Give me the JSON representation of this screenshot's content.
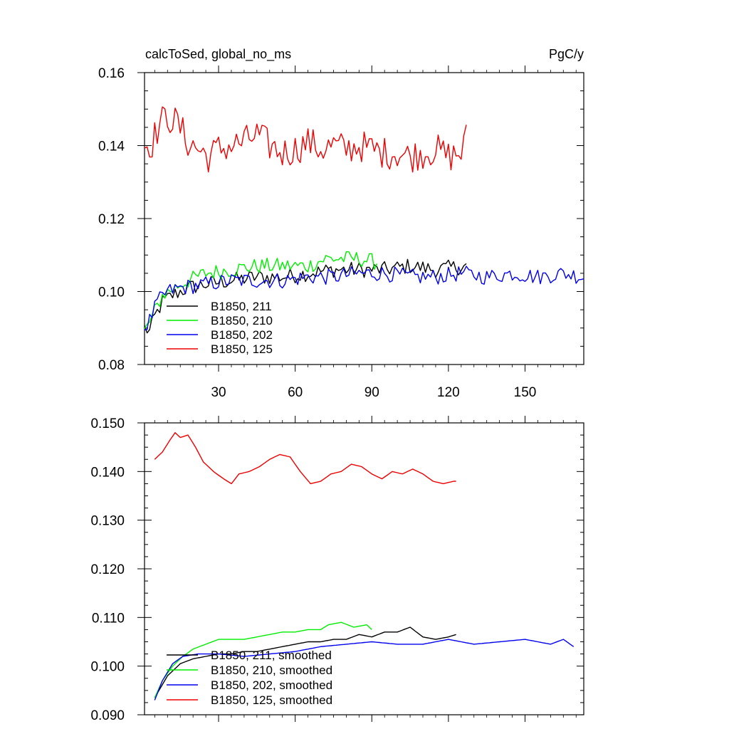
{
  "colors": {
    "run_211": "#000000",
    "run_210": "#00ee00",
    "run_202": "#0000ee",
    "run_125": "#ee0000"
  },
  "chart_data": [
    {
      "type": "line",
      "title": "calcToSed, global_no_ms",
      "units": "PgC/y",
      "xlabel": "",
      "ylabel": "",
      "xlim": [
        1,
        173
      ],
      "ylim": [
        0.08,
        0.16
      ],
      "xticks": [
        30,
        60,
        90,
        120,
        150
      ],
      "xtick_labels": [
        "30",
        "60",
        "90",
        "120",
        "150"
      ],
      "yticks": [
        0.08,
        0.1,
        0.12,
        0.14,
        0.16
      ],
      "ytick_labels": [
        "0.08",
        "0.10",
        "0.12",
        "0.14",
        "0.16"
      ],
      "legend_position": "bottom-left",
      "series": [
        {
          "name": "B1850, 211",
          "color_key": "run_211",
          "x_start": 1,
          "x_end": 127,
          "noisy": true,
          "anchors": [
            [
              1,
              0.09
            ],
            [
              3,
              0.089
            ],
            [
              5,
              0.093
            ],
            [
              8,
              0.097
            ],
            [
              12,
              0.099
            ],
            [
              18,
              0.101
            ],
            [
              25,
              0.102
            ],
            [
              35,
              0.103
            ],
            [
              45,
              0.104
            ],
            [
              55,
              0.104
            ],
            [
              65,
              0.105
            ],
            [
              75,
              0.106
            ],
            [
              85,
              0.106
            ],
            [
              95,
              0.106
            ],
            [
              105,
              0.107
            ],
            [
              115,
              0.106
            ],
            [
              127,
              0.107
            ]
          ]
        },
        {
          "name": "B1850, 210",
          "color_key": "run_210",
          "x_start": 1,
          "x_end": 92,
          "noisy": true,
          "anchors": [
            [
              1,
              0.089
            ],
            [
              4,
              0.093
            ],
            [
              8,
              0.099
            ],
            [
              15,
              0.102
            ],
            [
              25,
              0.105
            ],
            [
              35,
              0.106
            ],
            [
              45,
              0.107
            ],
            [
              55,
              0.107
            ],
            [
              65,
              0.107
            ],
            [
              72,
              0.109
            ],
            [
              78,
              0.109
            ],
            [
              85,
              0.109
            ],
            [
              92,
              0.108
            ]
          ]
        },
        {
          "name": "B1850, 202",
          "color_key": "run_202",
          "x_start": 1,
          "x_end": 173,
          "noisy": true,
          "anchors": [
            [
              1,
              0.09
            ],
            [
              3,
              0.092
            ],
            [
              6,
              0.097
            ],
            [
              10,
              0.1
            ],
            [
              15,
              0.101
            ],
            [
              25,
              0.102
            ],
            [
              35,
              0.103
            ],
            [
              45,
              0.103
            ],
            [
              55,
              0.103
            ],
            [
              65,
              0.104
            ],
            [
              75,
              0.104
            ],
            [
              85,
              0.105
            ],
            [
              95,
              0.105
            ],
            [
              105,
              0.104
            ],
            [
              115,
              0.104
            ],
            [
              125,
              0.105
            ],
            [
              135,
              0.104
            ],
            [
              145,
              0.105
            ],
            [
              155,
              0.104
            ],
            [
              165,
              0.105
            ],
            [
              173,
              0.104
            ]
          ]
        },
        {
          "name": "B1850, 125",
          "color_key": "run_125",
          "x_start": 1,
          "x_end": 127,
          "noisy": true,
          "anchors": [
            [
              1,
              0.14
            ],
            [
              4,
              0.141
            ],
            [
              7,
              0.146
            ],
            [
              10,
              0.148
            ],
            [
              14,
              0.146
            ],
            [
              18,
              0.141
            ],
            [
              22,
              0.139
            ],
            [
              26,
              0.137
            ],
            [
              30,
              0.139
            ],
            [
              35,
              0.14
            ],
            [
              40,
              0.141
            ],
            [
              45,
              0.143
            ],
            [
              50,
              0.14
            ],
            [
              55,
              0.138
            ],
            [
              60,
              0.139
            ],
            [
              65,
              0.141
            ],
            [
              70,
              0.139
            ],
            [
              75,
              0.14
            ],
            [
              80,
              0.139
            ],
            [
              85,
              0.14
            ],
            [
              90,
              0.139
            ],
            [
              95,
              0.138
            ],
            [
              100,
              0.138
            ],
            [
              105,
              0.137
            ],
            [
              110,
              0.138
            ],
            [
              115,
              0.139
            ],
            [
              120,
              0.137
            ],
            [
              125,
              0.138
            ],
            [
              127,
              0.142
            ]
          ]
        }
      ]
    },
    {
      "type": "line",
      "title": "",
      "units": "",
      "xlabel": "",
      "ylabel": "",
      "xlim": [
        1,
        173
      ],
      "ylim": [
        0.09,
        0.15
      ],
      "xticks": [
        30,
        60,
        90,
        120,
        150
      ],
      "xtick_labels": [],
      "yticks": [
        0.09,
        0.1,
        0.11,
        0.12,
        0.13,
        0.14,
        0.15
      ],
      "ytick_labels": [
        "0.090",
        "0.100",
        "0.110",
        "0.120",
        "0.130",
        "0.140",
        "0.150"
      ],
      "legend_position": "bottom-left",
      "series": [
        {
          "name": "B1850, 211, smoothed",
          "color_key": "run_211",
          "x_start": 5,
          "x_end": 123,
          "noisy": false,
          "anchors": [
            [
              5,
              0.0935
            ],
            [
              10,
              0.098
            ],
            [
              15,
              0.1005
            ],
            [
              20,
              0.1015
            ],
            [
              25,
              0.102
            ],
            [
              30,
              0.1025
            ],
            [
              35,
              0.1025
            ],
            [
              40,
              0.103
            ],
            [
              45,
              0.103
            ],
            [
              50,
              0.1035
            ],
            [
              55,
              0.104
            ],
            [
              60,
              0.1045
            ],
            [
              65,
              0.105
            ],
            [
              70,
              0.105
            ],
            [
              75,
              0.1055
            ],
            [
              80,
              0.1055
            ],
            [
              85,
              0.1065
            ],
            [
              90,
              0.106
            ],
            [
              95,
              0.107
            ],
            [
              100,
              0.107
            ],
            [
              105,
              0.108
            ],
            [
              110,
              0.106
            ],
            [
              115,
              0.1055
            ],
            [
              120,
              0.106
            ],
            [
              123,
              0.1065
            ]
          ]
        },
        {
          "name": "B1850, 210, smoothed",
          "color_key": "run_210",
          "x_start": 5,
          "x_end": 90,
          "noisy": false,
          "anchors": [
            [
              5,
              0.0935
            ],
            [
              8,
              0.097
            ],
            [
              12,
              0.1
            ],
            [
              16,
              0.102
            ],
            [
              20,
              0.1035
            ],
            [
              25,
              0.1045
            ],
            [
              30,
              0.1055
            ],
            [
              35,
              0.1055
            ],
            [
              40,
              0.1055
            ],
            [
              45,
              0.106
            ],
            [
              50,
              0.1065
            ],
            [
              55,
              0.107
            ],
            [
              60,
              0.107
            ],
            [
              65,
              0.1075
            ],
            [
              70,
              0.1075
            ],
            [
              73,
              0.1085
            ],
            [
              78,
              0.109
            ],
            [
              83,
              0.108
            ],
            [
              88,
              0.1085
            ],
            [
              90,
              0.1075
            ]
          ]
        },
        {
          "name": "B1850, 202, smoothed",
          "color_key": "run_202",
          "x_start": 5,
          "x_end": 169,
          "noisy": false,
          "anchors": [
            [
              5,
              0.093
            ],
            [
              8,
              0.097
            ],
            [
              12,
              0.1005
            ],
            [
              16,
              0.102
            ],
            [
              22,
              0.1025
            ],
            [
              30,
              0.1025
            ],
            [
              40,
              0.102
            ],
            [
              50,
              0.1025
            ],
            [
              60,
              0.103
            ],
            [
              70,
              0.104
            ],
            [
              80,
              0.1045
            ],
            [
              90,
              0.105
            ],
            [
              100,
              0.1045
            ],
            [
              110,
              0.1045
            ],
            [
              120,
              0.1055
            ],
            [
              130,
              0.1045
            ],
            [
              140,
              0.105
            ],
            [
              150,
              0.1055
            ],
            [
              160,
              0.1045
            ],
            [
              165,
              0.1055
            ],
            [
              169,
              0.104
            ]
          ]
        },
        {
          "name": "B1850, 125, smoothed",
          "color_key": "run_125",
          "x_start": 5,
          "x_end": 123,
          "noisy": false,
          "anchors": [
            [
              5,
              0.1425
            ],
            [
              8,
              0.144
            ],
            [
              11,
              0.1465
            ],
            [
              13,
              0.148
            ],
            [
              15,
              0.147
            ],
            [
              18,
              0.1475
            ],
            [
              21,
              0.145
            ],
            [
              24,
              0.142
            ],
            [
              28,
              0.14
            ],
            [
              32,
              0.1385
            ],
            [
              35,
              0.1375
            ],
            [
              38,
              0.1395
            ],
            [
              42,
              0.14
            ],
            [
              46,
              0.141
            ],
            [
              50,
              0.1425
            ],
            [
              54,
              0.1435
            ],
            [
              58,
              0.143
            ],
            [
              62,
              0.14
            ],
            [
              66,
              0.1375
            ],
            [
              70,
              0.138
            ],
            [
              74,
              0.1395
            ],
            [
              78,
              0.14
            ],
            [
              82,
              0.1415
            ],
            [
              86,
              0.141
            ],
            [
              90,
              0.1395
            ],
            [
              94,
              0.1385
            ],
            [
              98,
              0.14
            ],
            [
              102,
              0.1395
            ],
            [
              106,
              0.1405
            ],
            [
              110,
              0.1395
            ],
            [
              114,
              0.138
            ],
            [
              118,
              0.1375
            ],
            [
              122,
              0.138
            ],
            [
              123,
              0.138
            ]
          ]
        }
      ]
    }
  ]
}
